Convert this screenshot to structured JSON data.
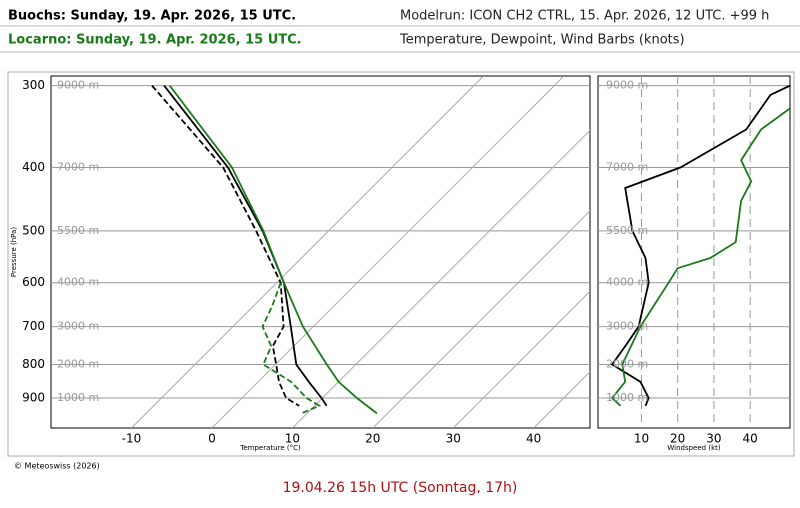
{
  "header": {
    "left": [
      "Buochs: Sunday, 19. Apr. 2026, 15 UTC.",
      "Locarno: Sunday, 19. Apr. 2026, 15 UTC."
    ],
    "right": [
      "Modelrun: ICON CH2 CTRL, 15. Apr. 2026, 12 UTC. +99 h",
      "Temperature, Dewpoint, Wind Barbs (knots)"
    ]
  },
  "footer": "© Meteoswiss (2026)",
  "caption": "19.04.26 15h UTC (Sonntag, 17h)",
  "chart_data": [
    {
      "type": "skewt",
      "x_label": "Temperature (°C)",
      "y_label": "Pressure (hPa)",
      "log_y": true,
      "xlim": [
        -20,
        47
      ],
      "xticks": [
        -10,
        0,
        10,
        20,
        30,
        40
      ],
      "ylim": [
        1000,
        290
      ],
      "yticks": [
        300,
        400,
        500,
        600,
        700,
        800,
        900
      ],
      "height_labels": [
        {
          "value": 300,
          "label": "9000 m"
        },
        {
          "value": 400,
          "label": "7000 m"
        },
        {
          "value": 500,
          "label": "5500 m"
        },
        {
          "value": 600,
          "label": "4000 m"
        },
        {
          "value": 700,
          "label": "3000 m"
        },
        {
          "value": 800,
          "label": "2000 m"
        },
        {
          "value": 900,
          "label": "1000 m"
        }
      ],
      "series": [
        {
          "color": "#000000",
          "dash": false,
          "y": [
            300,
            400,
            500,
            600,
            700,
            800,
            850,
            900,
            925
          ],
          "values": [
            -48.5,
            -30.4,
            -18.2,
            -9.1,
            -2.8,
            2.6,
            6.3,
            9.9,
            11.5
          ]
        },
        {
          "color": "#000000",
          "dash": true,
          "y": [
            300,
            400,
            500,
            600,
            700,
            750,
            800,
            850,
            900,
            925
          ],
          "values": [
            -50,
            -31,
            -19,
            -9.5,
            -3.7,
            -2.6,
            0.1,
            2.6,
            5.5,
            8.1
          ]
        },
        {
          "color": "#1a7a1a",
          "dash": false,
          "y": [
            300,
            400,
            500,
            600,
            700,
            800,
            850,
            900,
            950
          ],
          "values": [
            -47.8,
            -29.9,
            -18.1,
            -9.1,
            -1.3,
            6.4,
            10,
            14.3,
            18.7
          ]
        },
        {
          "color": "#1a7a1a",
          "dash": true,
          "y": [
            600,
            650,
            700,
            750,
            800,
            850,
            900,
            925,
            950
          ],
          "values": [
            -9.5,
            -7.7,
            -6.3,
            -2.8,
            -1.5,
            4.1,
            8.05,
            10.6,
            9.3
          ]
        }
      ]
    },
    {
      "type": "profile",
      "x_label": "Windspeed (kt)",
      "log_y": true,
      "xlim": [
        -2,
        51
      ],
      "xticks": [
        10,
        20,
        30,
        40
      ],
      "ylim": [
        1000,
        290
      ],
      "yticks": [
        {
          "value": 300,
          "label": "9000 m"
        },
        {
          "value": 400,
          "label": "7000 m"
        },
        {
          "value": 500,
          "label": "5500 m"
        },
        {
          "value": 600,
          "label": "4000 m"
        },
        {
          "value": 700,
          "label": "3000 m"
        },
        {
          "value": 800,
          "label": "2000 m"
        },
        {
          "value": 900,
          "label": "1000 m"
        }
      ],
      "series": [
        {
          "color": "#000000",
          "y": [
            300,
            310,
            350,
            400,
            430,
            500,
            550,
            600,
            700,
            750,
            800,
            850,
            900,
            925
          ],
          "values": [
            51,
            45.6,
            38.9,
            20.8,
            5.5,
            7.5,
            11.1,
            12,
            9.2,
            5.5,
            1.9,
            9.7,
            12,
            11.1
          ]
        },
        {
          "color": "#1a7a1a",
          "y": [
            325,
            350,
            390,
            420,
            450,
            520,
            550,
            570,
            600,
            700,
            800,
            850,
            900,
            925
          ],
          "values": [
            51,
            43,
            37.5,
            40.3,
            37.5,
            36,
            29,
            20,
            17.5,
            9.7,
            4.7,
            5.5,
            1.9,
            4.2
          ]
        }
      ]
    }
  ]
}
